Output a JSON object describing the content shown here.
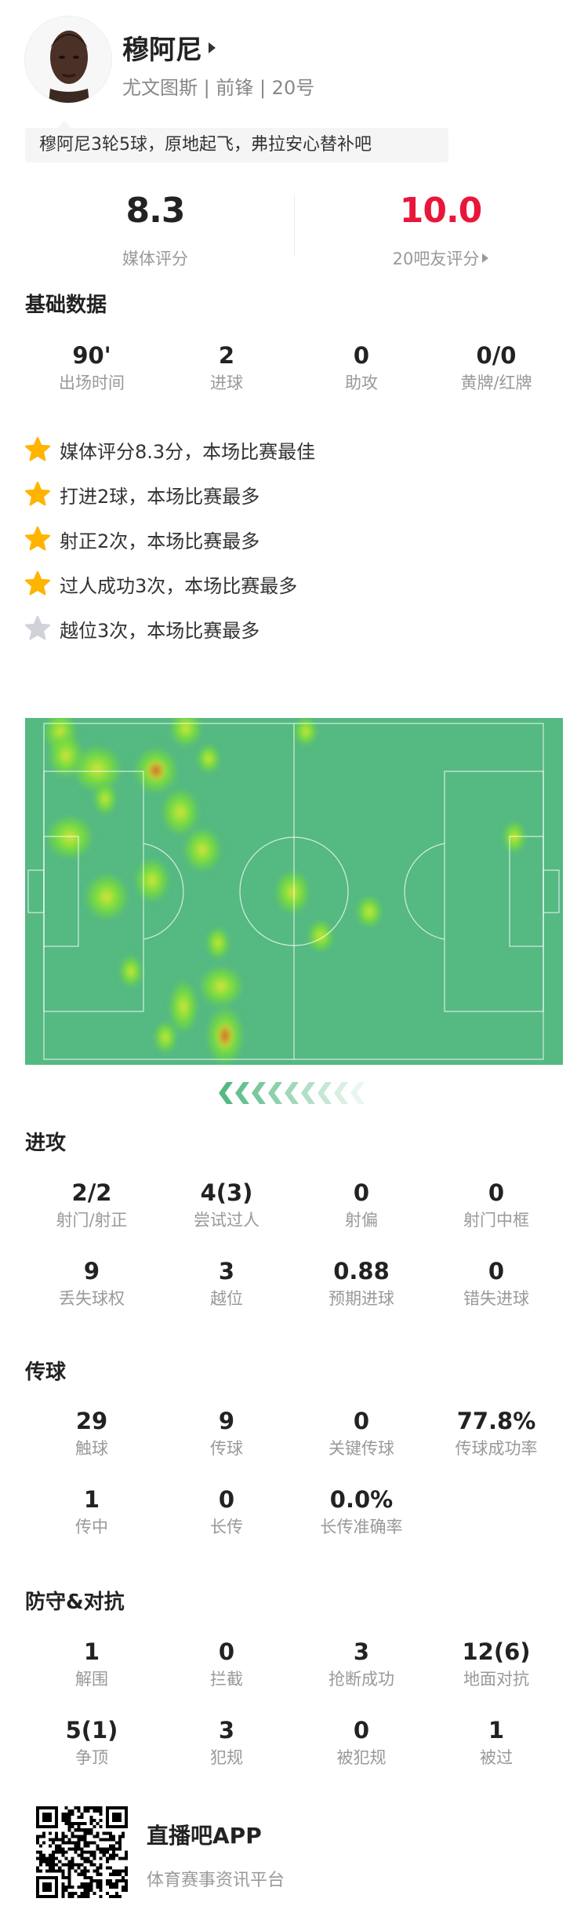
{
  "player": {
    "name": "穆阿尼",
    "subtitle": "尤文图斯 | 前锋 | 20号",
    "quote": "穆阿尼3轮5球，原地起飞，弗拉安心替补吧"
  },
  "ratings": {
    "media": {
      "value": "8.3",
      "label": "媒体评分"
    },
    "fans": {
      "value": "10.0",
      "label": "20吧友评分",
      "color": "#e8173a"
    }
  },
  "basic": {
    "title": "基础数据",
    "stats": [
      {
        "value": "90'",
        "label": "出场时间"
      },
      {
        "value": "2",
        "label": "进球"
      },
      {
        "value": "0",
        "label": "助攻"
      },
      {
        "value": "0/0",
        "label": "黄牌/红牌"
      }
    ]
  },
  "highlights": [
    {
      "text": "媒体评分8.3分，本场比赛最佳",
      "star": "gold"
    },
    {
      "text": "打进2球，本场比赛最多",
      "star": "gold"
    },
    {
      "text": "射正2次，本场比赛最多",
      "star": "gold"
    },
    {
      "text": "过人成功3次，本场比赛最多",
      "star": "gold"
    },
    {
      "text": "越位3次，本场比赛最多",
      "star": "silver"
    }
  ],
  "colors": {
    "pitch": "#55b982",
    "star_gold": "#ffb400",
    "star_silver": "#d0d2da"
  },
  "attack": {
    "title": "进攻",
    "stats": [
      {
        "value": "2/2",
        "label": "射门/射正"
      },
      {
        "value": "4(3)",
        "label": "尝试过人"
      },
      {
        "value": "0",
        "label": "射偏"
      },
      {
        "value": "0",
        "label": "射门中框"
      },
      {
        "value": "9",
        "label": "丢失球权"
      },
      {
        "value": "3",
        "label": "越位"
      },
      {
        "value": "0.88",
        "label": "预期进球"
      },
      {
        "value": "0",
        "label": "错失进球"
      }
    ]
  },
  "passing": {
    "title": "传球",
    "stats": [
      {
        "value": "29",
        "label": "触球"
      },
      {
        "value": "9",
        "label": "传球"
      },
      {
        "value": "0",
        "label": "关键传球"
      },
      {
        "value": "77.8%",
        "label": "传球成功率"
      },
      {
        "value": "1",
        "label": "传中"
      },
      {
        "value": "0",
        "label": "长传"
      },
      {
        "value": "0.0%",
        "label": "长传准确率"
      }
    ]
  },
  "defense": {
    "title": "防守&对抗",
    "stats": [
      {
        "value": "1",
        "label": "解围"
      },
      {
        "value": "0",
        "label": "拦截"
      },
      {
        "value": "3",
        "label": "抢断成功"
      },
      {
        "value": "12(6)",
        "label": "地面对抗"
      },
      {
        "value": "5(1)",
        "label": "争顶"
      },
      {
        "value": "3",
        "label": "犯规"
      },
      {
        "value": "0",
        "label": "被犯规"
      },
      {
        "value": "1",
        "label": "被过"
      }
    ]
  },
  "footer": {
    "app_name": "直播吧APP",
    "tagline": "体育赛事资讯平台"
  }
}
